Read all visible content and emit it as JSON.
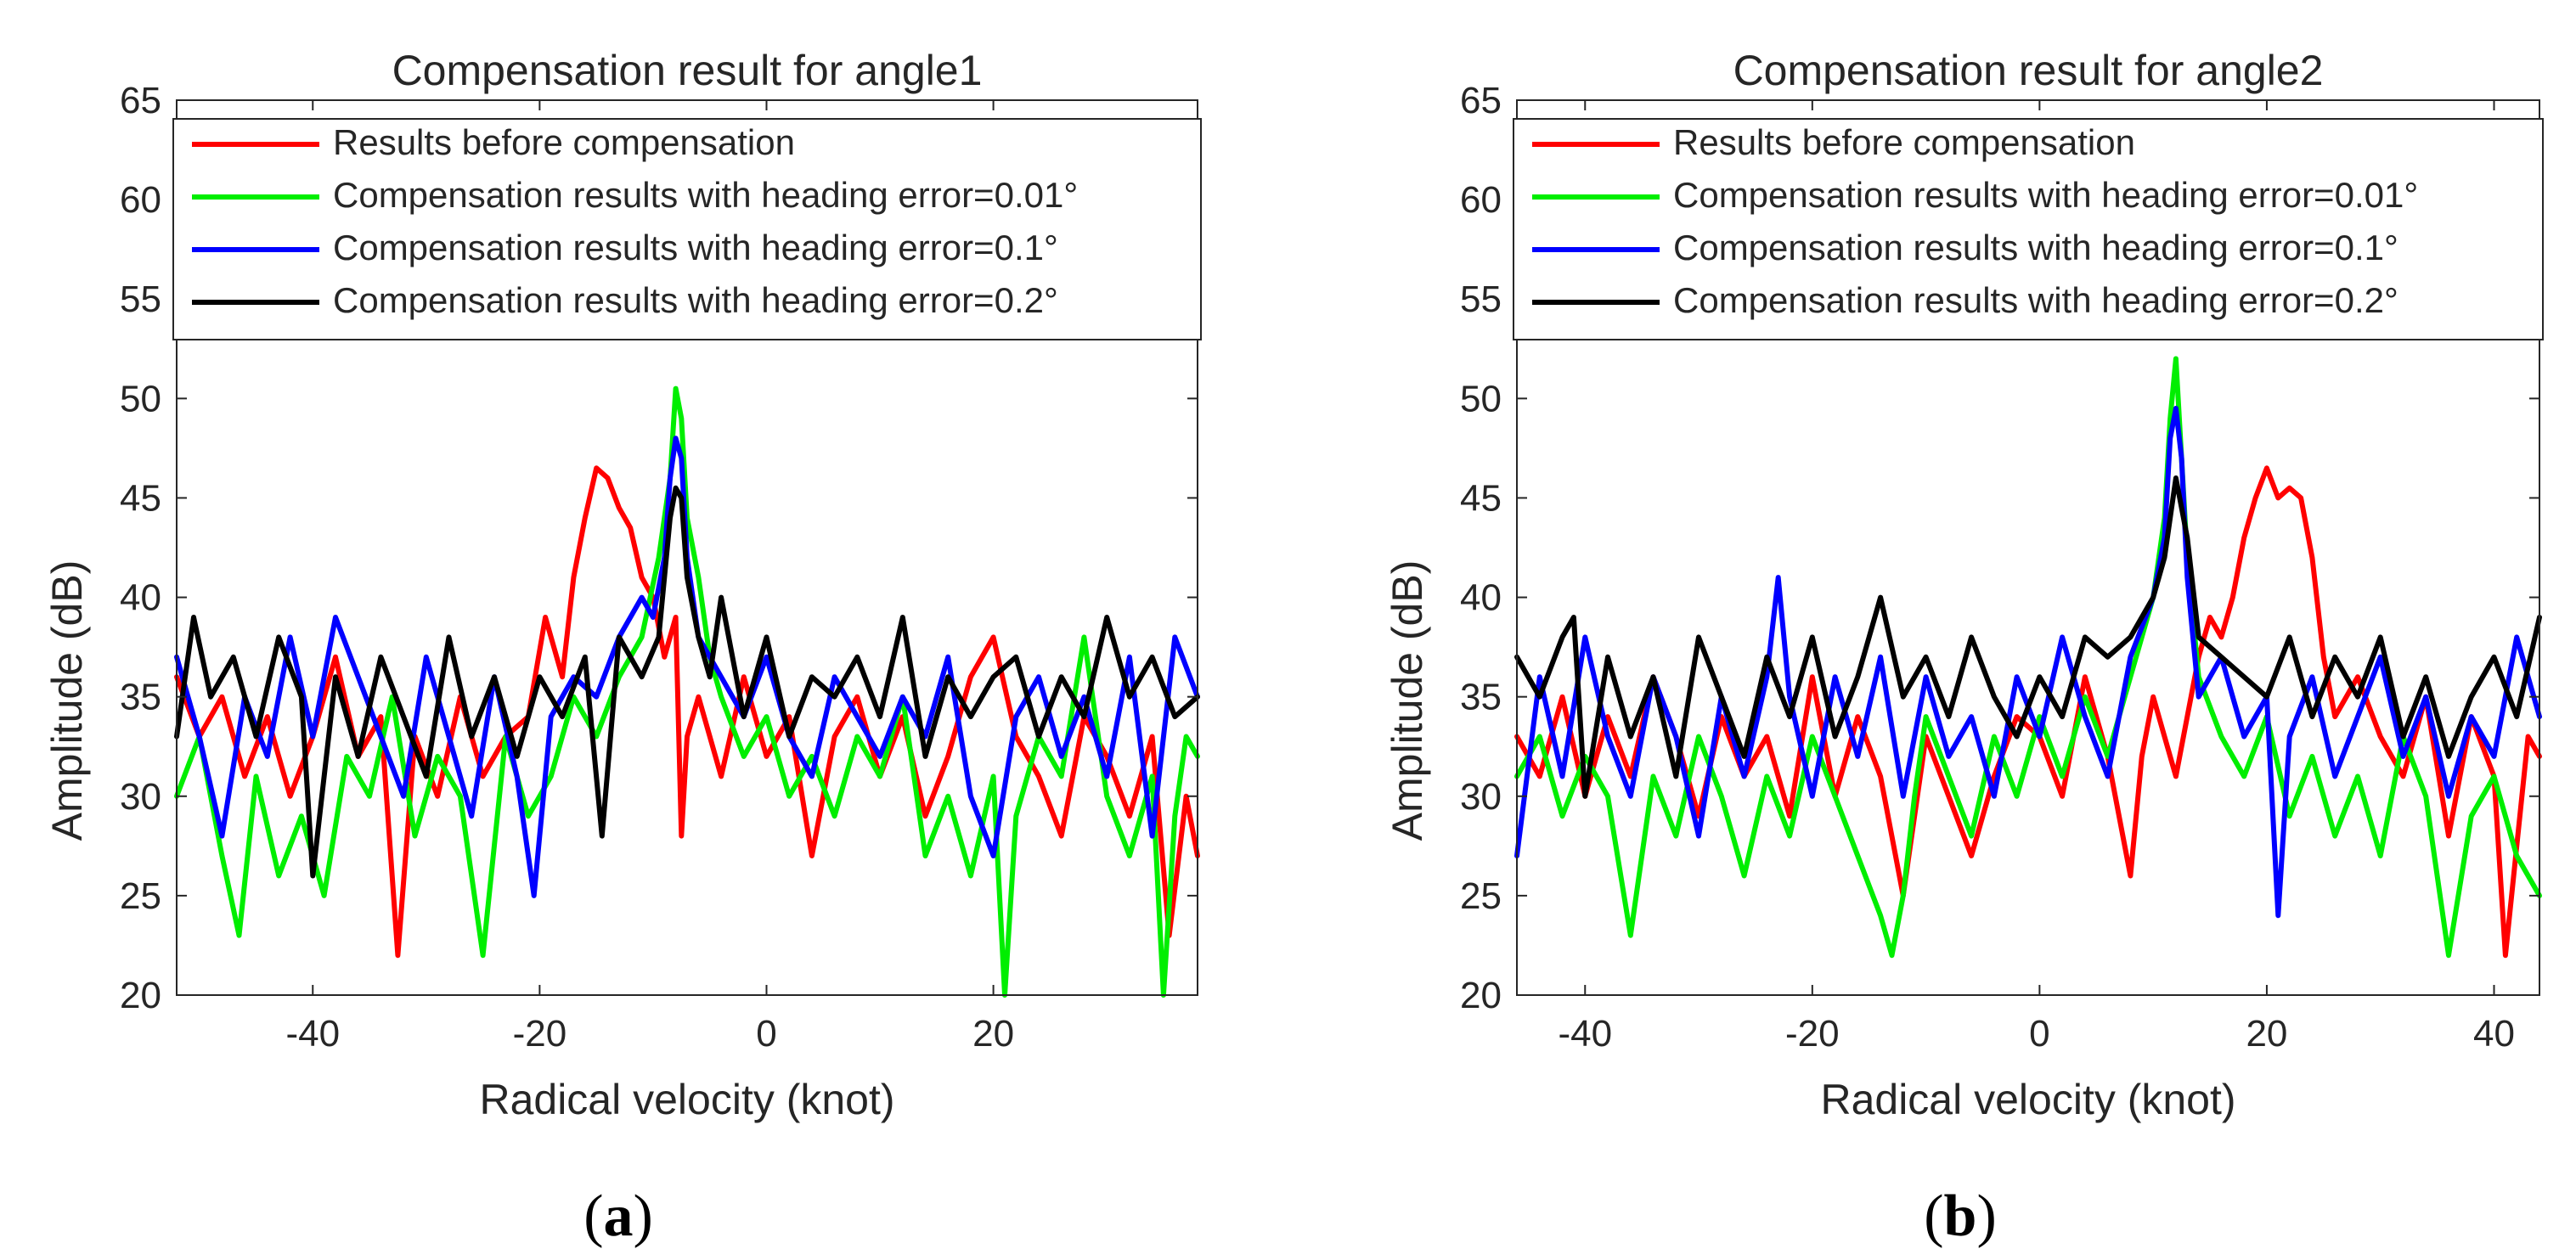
{
  "chart_data": [
    {
      "type": "line",
      "panel_label": {
        "open": "(",
        "letter": "a",
        "close": ")"
      },
      "title": "Compensation result for angle1",
      "xlabel": "Radical velocity (knot)",
      "ylabel": "Amplitude (dB)",
      "xlim": [
        -52,
        38
      ],
      "ylim": [
        20,
        65
      ],
      "xticks": [
        -40,
        -20,
        0,
        20
      ],
      "xtick_labels": [
        "-40",
        "-20",
        "0",
        "20"
      ],
      "yticks": [
        20,
        25,
        30,
        35,
        40,
        45,
        50,
        55,
        60,
        65
      ],
      "ytick_labels": [
        "20",
        "25",
        "30",
        "35",
        "40",
        "45",
        "50",
        "55",
        "60",
        "65"
      ],
      "legend_position": "top",
      "series": [
        {
          "name": "Results before compensation",
          "color": "#ff0000",
          "x": [
            -52,
            -50,
            -48,
            -46,
            -44,
            -42,
            -40,
            -38,
            -36,
            -34,
            -32.5,
            -31,
            -29,
            -27,
            -25,
            -23,
            -21,
            -19.5,
            -18,
            -17,
            -16,
            -15,
            -14,
            -13,
            -12,
            -11,
            -10,
            -9,
            -8,
            -7.5,
            -7,
            -6,
            -4,
            -2,
            0,
            2,
            4,
            6,
            8,
            10,
            12,
            14,
            16,
            18,
            20,
            22,
            24,
            26,
            28,
            30,
            32,
            34,
            35.5,
            37,
            38
          ],
          "y": [
            36,
            33,
            35,
            31,
            34,
            30,
            33,
            37,
            32,
            34,
            22,
            33,
            30,
            35,
            31,
            33,
            34,
            39,
            36,
            41,
            44,
            46.5,
            46,
            44.5,
            43.5,
            41,
            40,
            37,
            39,
            28,
            33,
            35,
            31,
            36,
            32,
            34,
            27,
            33,
            35,
            31,
            34,
            29,
            32,
            36,
            38,
            33,
            31,
            28,
            34,
            32,
            29,
            33,
            23,
            30,
            27
          ]
        },
        {
          "name": "Compensation results with heading error=0.01°",
          "color": "#00ee00",
          "x": [
            -52,
            -50,
            -48,
            -46.5,
            -45,
            -43,
            -41,
            -39,
            -37,
            -35,
            -33,
            -31,
            -29,
            -27,
            -25,
            -23,
            -21,
            -19,
            -17,
            -15,
            -13,
            -11,
            -9.5,
            -8.5,
            -8,
            -7.5,
            -7,
            -6,
            -5,
            -4,
            -2,
            0,
            2,
            4,
            6,
            8,
            10,
            12,
            14,
            16,
            18,
            20,
            21,
            22,
            24,
            26,
            28,
            30,
            32,
            34,
            35,
            36,
            37,
            38
          ],
          "y": [
            30,
            33,
            27,
            23,
            31,
            26,
            29,
            25,
            32,
            30,
            35,
            28,
            32,
            30,
            22,
            33,
            29,
            31,
            35,
            33,
            36,
            38,
            42,
            46,
            50.5,
            49,
            44,
            41,
            37,
            35,
            32,
            34,
            30,
            32,
            29,
            33,
            31,
            35,
            27,
            30,
            26,
            31,
            20,
            29,
            33,
            31,
            38,
            30,
            27,
            31,
            20,
            29,
            33,
            32
          ]
        },
        {
          "name": "Compensation results with heading error=0.1°",
          "color": "#0000ff",
          "x": [
            -52,
            -50,
            -48,
            -46,
            -44,
            -42,
            -40,
            -38,
            -36,
            -34,
            -32,
            -30,
            -28,
            -26,
            -24,
            -22,
            -20.5,
            -19,
            -17,
            -15,
            -13,
            -11,
            -10,
            -9,
            -8.5,
            -8,
            -7.5,
            -7,
            -6,
            -4,
            -2,
            0,
            2,
            4,
            6,
            8,
            10,
            12,
            14,
            16,
            18,
            20,
            22,
            24,
            26,
            28,
            30,
            32,
            34,
            36,
            38
          ],
          "y": [
            37,
            33,
            28,
            35,
            32,
            38,
            33,
            39,
            36,
            33,
            30,
            37,
            33,
            29,
            36,
            31,
            25,
            34,
            36,
            35,
            38,
            40,
            39,
            42,
            46,
            48,
            47,
            42,
            38,
            36,
            34,
            37,
            33,
            31,
            36,
            34,
            32,
            35,
            33,
            37,
            30,
            27,
            34,
            36,
            32,
            35,
            31,
            37,
            28,
            38,
            35
          ]
        },
        {
          "name": "Compensation results with heading error=0.2°",
          "color": "#000000",
          "x": [
            -52,
            -50.5,
            -49,
            -47,
            -45,
            -43,
            -41,
            -40,
            -38,
            -36,
            -34,
            -32,
            -30,
            -28,
            -26,
            -24,
            -22,
            -20,
            -18,
            -16,
            -14.5,
            -13,
            -11,
            -9.5,
            -8.5,
            -8,
            -7.5,
            -7,
            -6,
            -5,
            -4,
            -2,
            0,
            2,
            4,
            6,
            8,
            10,
            12,
            14,
            16,
            18,
            20,
            22,
            24,
            26,
            28,
            30,
            32,
            34,
            36,
            38
          ],
          "y": [
            33,
            39,
            35,
            37,
            33,
            38,
            35,
            26,
            36,
            32,
            37,
            34,
            31,
            38,
            33,
            36,
            32,
            36,
            34,
            37,
            28,
            38,
            36,
            38,
            44,
            45.5,
            45,
            41,
            38,
            36,
            40,
            34,
            38,
            33,
            36,
            35,
            37,
            34,
            39,
            32,
            36,
            34,
            36,
            37,
            33,
            36,
            34,
            39,
            35,
            37,
            34,
            35
          ]
        }
      ]
    },
    {
      "type": "line",
      "panel_label": {
        "open": "(",
        "letter": "b",
        "close": ")"
      },
      "title": "Compensation result for angle2",
      "xlabel": "Radical velocity (knot)",
      "ylabel": "Amplitude (dB)",
      "xlim": [
        -46,
        44
      ],
      "ylim": [
        20,
        65
      ],
      "xticks": [
        -40,
        -20,
        0,
        20,
        40
      ],
      "xtick_labels": [
        "-40",
        "-20",
        "0",
        "20",
        "40"
      ],
      "yticks": [
        20,
        25,
        30,
        35,
        40,
        45,
        50,
        55,
        60,
        65
      ],
      "ytick_labels": [
        "20",
        "25",
        "30",
        "35",
        "40",
        "45",
        "50",
        "55",
        "60",
        "65"
      ],
      "legend_position": "top",
      "series": [
        {
          "name": "Results before compensation",
          "color": "#ff0000",
          "x": [
            -46,
            -44,
            -42,
            -40,
            -38,
            -36,
            -34,
            -32,
            -30,
            -28,
            -26,
            -24,
            -22,
            -20,
            -18,
            -16,
            -14,
            -12,
            -10,
            -8,
            -6,
            -4,
            -2,
            0,
            2,
            4,
            6,
            8,
            9,
            10,
            11,
            12,
            13,
            14,
            15,
            16,
            17,
            18,
            19,
            20,
            21,
            22,
            23,
            24,
            25,
            26,
            28,
            30,
            32,
            34,
            36,
            38,
            40,
            41,
            43,
            44
          ],
          "y": [
            33,
            31,
            35,
            30,
            34,
            31,
            36,
            33,
            29,
            34,
            31,
            33,
            29,
            36,
            30,
            34,
            31,
            25,
            33,
            30,
            27,
            31,
            34,
            33,
            30,
            36,
            32,
            26,
            32,
            35,
            33,
            31,
            34,
            37,
            39,
            38,
            40,
            43,
            45,
            46.5,
            45,
            45.5,
            45,
            42,
            37,
            34,
            36,
            33,
            31,
            35,
            28,
            34,
            31,
            22,
            33,
            32
          ]
        },
        {
          "name": "Compensation results with heading error=0.01°",
          "color": "#00ee00",
          "x": [
            -46,
            -44,
            -42,
            -40,
            -38,
            -36,
            -34,
            -32,
            -30,
            -28,
            -26,
            -24,
            -22,
            -20,
            -18,
            -16,
            -14,
            -13,
            -12,
            -11,
            -10,
            -8,
            -6,
            -4,
            -2,
            0,
            2,
            4,
            6,
            8,
            10,
            11,
            11.5,
            12,
            12.5,
            13,
            14,
            16,
            18,
            20,
            22,
            24,
            26,
            28,
            30,
            32,
            34,
            36,
            38,
            40,
            42,
            44
          ],
          "y": [
            31,
            33,
            29,
            32,
            30,
            23,
            31,
            28,
            33,
            30,
            26,
            31,
            28,
            33,
            30,
            27,
            24,
            22,
            25,
            30,
            34,
            31,
            28,
            33,
            30,
            34,
            31,
            35,
            32,
            36,
            40,
            44,
            49,
            52,
            47,
            42,
            36,
            33,
            31,
            34,
            29,
            32,
            28,
            31,
            27,
            33,
            30,
            22,
            29,
            31,
            27,
            25
          ]
        },
        {
          "name": "Compensation results with heading error=0.1°",
          "color": "#0000ff",
          "x": [
            -46,
            -44,
            -42,
            -40,
            -38,
            -36,
            -34,
            -32,
            -30,
            -28,
            -26,
            -24,
            -23,
            -22,
            -20,
            -18,
            -16,
            -14,
            -12,
            -10,
            -8,
            -6,
            -4,
            -2,
            0,
            2,
            4,
            6,
            8,
            10,
            11,
            11.5,
            12,
            12.5,
            13,
            14,
            16,
            18,
            20,
            21,
            22,
            24,
            26,
            28,
            30,
            32,
            34,
            36,
            38,
            40,
            42,
            44
          ],
          "y": [
            27,
            36,
            31,
            38,
            33,
            30,
            36,
            33,
            28,
            35,
            31,
            36,
            41,
            35,
            30,
            36,
            32,
            37,
            30,
            36,
            32,
            34,
            30,
            36,
            33,
            38,
            34,
            31,
            37,
            40,
            43,
            48,
            49.5,
            47,
            41,
            35,
            37,
            33,
            35,
            24,
            33,
            36,
            31,
            34,
            37,
            32,
            35,
            30,
            34,
            32,
            38,
            34
          ]
        },
        {
          "name": "Compensation results with heading error=0.2°",
          "color": "#000000",
          "x": [
            -46,
            -44,
            -42,
            -41,
            -40,
            -38,
            -36,
            -34,
            -32,
            -30,
            -28,
            -26,
            -24,
            -22,
            -20,
            -18,
            -16,
            -14,
            -12,
            -10,
            -8,
            -6,
            -4,
            -2,
            0,
            2,
            4,
            6,
            8,
            10,
            11,
            12,
            13,
            14,
            16,
            18,
            20,
            22,
            24,
            26,
            28,
            30,
            32,
            34,
            36,
            38,
            40,
            42,
            44
          ],
          "y": [
            37,
            35,
            38,
            39,
            30,
            37,
            33,
            36,
            31,
            38,
            35,
            32,
            37,
            34,
            38,
            33,
            36,
            40,
            35,
            37,
            34,
            38,
            35,
            33,
            36,
            34,
            38,
            37,
            38,
            40,
            42,
            46,
            43,
            38,
            37,
            36,
            35,
            38,
            34,
            37,
            35,
            38,
            33,
            36,
            32,
            35,
            37,
            34,
            39
          ]
        }
      ]
    }
  ]
}
